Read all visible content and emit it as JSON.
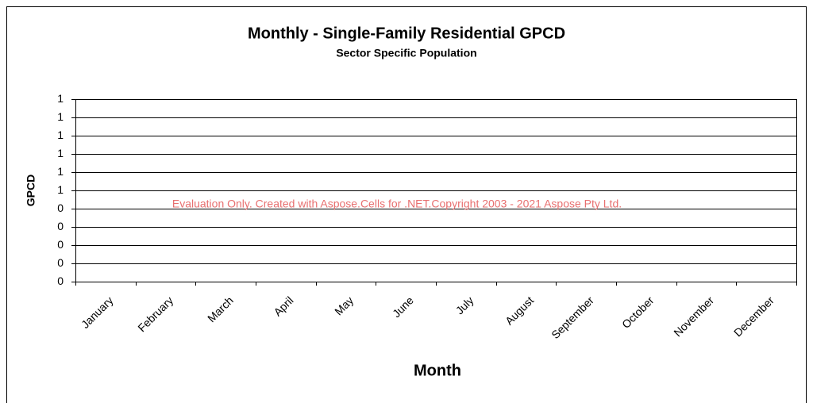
{
  "chart_data": {
    "type": "line",
    "title": "Monthly - Single-Family Residential GPCD",
    "subtitle": "Sector Specific Population",
    "y_label": "GPCD",
    "x_label": "Month",
    "annotation": "Evaluation Only. Created with Aspose.Cells for .NET.Copyright 2003 - 2021 Aspose Pty Ltd.",
    "categories": [
      "January",
      "February",
      "March",
      "April",
      "May",
      "June",
      "July",
      "August",
      "September",
      "October",
      "November",
      "December"
    ],
    "ylim": [
      0,
      1
    ],
    "yticks": [
      0,
      {
        "value": 0.1,
        "label": "0"
      },
      {
        "value": 0.2,
        "label": "0"
      },
      {
        "value": 0.3,
        "label": "0"
      },
      {
        "value": 0.4,
        "label": "0"
      },
      {
        "value": 0.5,
        "label": "1"
      },
      {
        "value": 0.6,
        "label": "1"
      },
      {
        "value": 0.7,
        "label": "1"
      },
      {
        "value": 0.8,
        "label": "1"
      },
      {
        "value": 0.9,
        "label": "1"
      },
      1
    ],
    "grid": true
  }
}
